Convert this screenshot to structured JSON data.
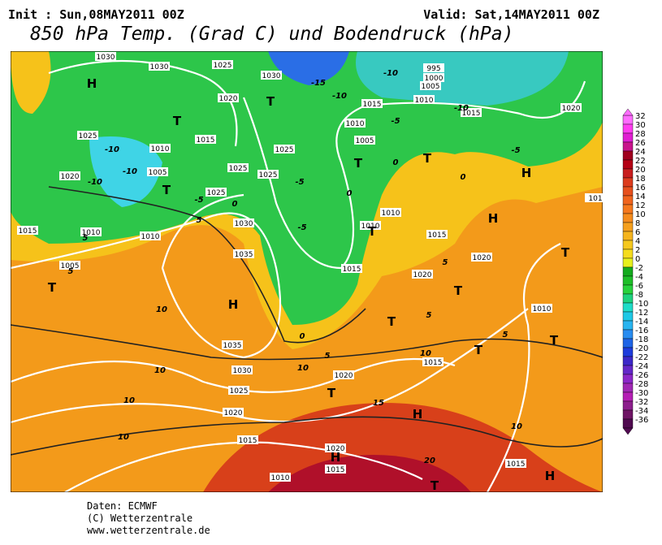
{
  "header": {
    "init": "Init : Sun,08MAY2011 00Z",
    "valid": "Valid: Sat,14MAY2011 00Z",
    "title": "850 hPa Temp. (Grad C) und Bodendruck (hPa)"
  },
  "legend": {
    "labels": [
      32,
      30,
      28,
      26,
      24,
      22,
      20,
      18,
      16,
      14,
      12,
      10,
      8,
      6,
      4,
      2,
      0,
      -2,
      -4,
      -6,
      -8,
      -10,
      -12,
      -14,
      -16,
      -18,
      -20,
      -22,
      -24,
      -26,
      -28,
      -30,
      -32,
      -34,
      -36
    ]
  },
  "footer": {
    "lines": [
      "Daten: ECMWF",
      "(C) Wetterzentrale",
      "www.wetterzentrale.de"
    ]
  },
  "map": {
    "isobar_labels": [
      "1030",
      "1030",
      "1025",
      "1030",
      "995",
      "1000",
      "1005",
      "1015",
      "1010",
      "1015",
      "1020",
      "1020",
      "1010",
      "1015",
      "1025",
      "1025",
      "1010",
      "1005",
      "1005",
      "1025",
      "1025",
      "1025",
      "1020",
      "1030",
      "1010",
      "1010",
      "1015",
      "1015",
      "1010",
      "1010",
      "1035",
      "1020",
      "1015",
      "1005",
      "1020",
      "1010",
      "1035",
      "1015",
      "1030",
      "1020",
      "1025",
      "1020",
      "1015",
      "1020",
      "1015",
      "1015",
      "1010",
      "101"
    ],
    "isotherm_labels": [
      "-15",
      "-10",
      "-10",
      "-5",
      "-10",
      "-5",
      "-10",
      "-10",
      "-10",
      "-5",
      "0",
      "-5",
      "-5",
      "0",
      "0",
      "5",
      "5",
      "5",
      "10",
      "10",
      "10",
      "10",
      "0",
      "5",
      "10",
      "10",
      "15",
      "10",
      "20",
      "5",
      "5",
      "0",
      "5"
    ],
    "centers": [
      "H",
      "T",
      "T",
      "T",
      "H",
      "T",
      "T",
      "T",
      "H",
      "H",
      "T",
      "T",
      "T",
      "T",
      "T",
      "T",
      "T",
      "H",
      "H",
      "T",
      "H"
    ]
  }
}
